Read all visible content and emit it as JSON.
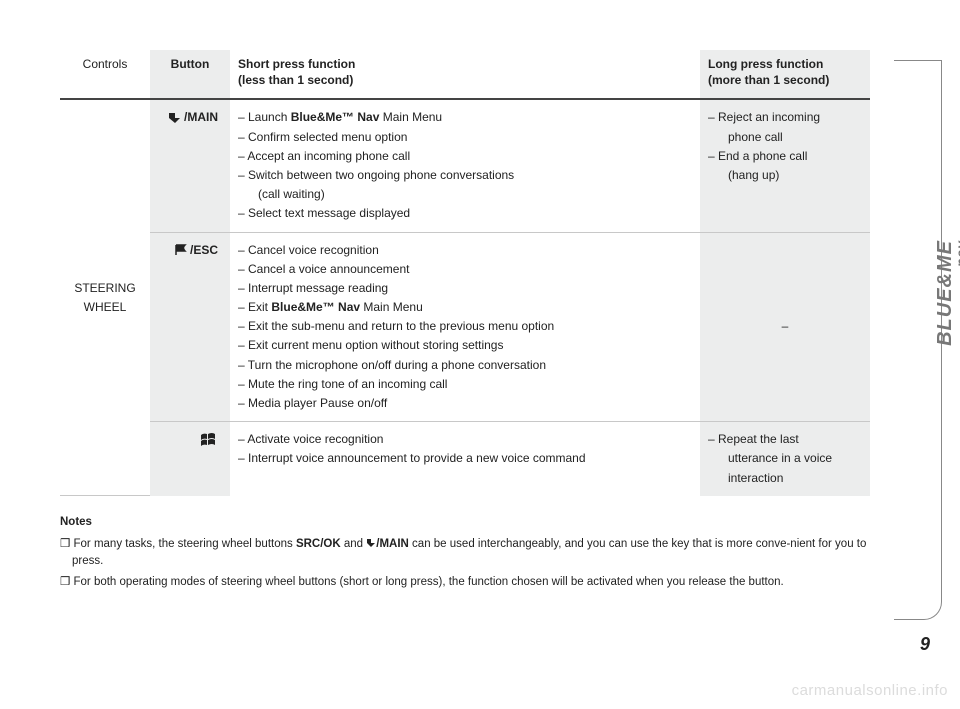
{
  "colors": {
    "shaded_bg": "#eceded",
    "header_rule": "#444444",
    "row_rule": "#c8c8c8",
    "text": "#222222",
    "side_border": "#888888",
    "side_text": "#777777",
    "watermark": "#dcdcdc"
  },
  "table": {
    "headers": {
      "controls": "Controls",
      "button": "Button",
      "short": "Short press function",
      "short_sub": "(less than 1 second)",
      "long": "Long press function",
      "long_sub": "(more than 1 second)"
    },
    "controls_label_line1": "STEERING",
    "controls_label_line2": "WHEEL",
    "rows": [
      {
        "button_icon": "phone-arrow",
        "button_label": "/MAIN",
        "short": [
          "– Launch <b>Blue&Me™ Nav</b> Main Menu",
          "– Confirm selected menu option",
          "– Accept an incoming phone call",
          "– Switch between two ongoing phone conversations",
          "   (call waiting)",
          "– Select text message displayed"
        ],
        "long": [
          "– Reject an incoming",
          "   phone call",
          "– End a phone call",
          "   (hang up)"
        ]
      },
      {
        "button_icon": "flag",
        "button_label": "/ESC",
        "short": [
          "– Cancel voice recognition",
          "– Cancel a voice announcement",
          "– Interrupt message reading",
          "– Exit <b>Blue&Me™ Nav</b> Main Menu",
          "– Exit the sub-menu and return to the previous menu option",
          "– Exit current menu option without storing settings",
          "– Turn the microphone on/off during a phone conversation",
          "– Mute the ring tone of an incoming call",
          "– Media player Pause on/off"
        ],
        "long": [
          "–"
        ],
        "long_centered": true
      },
      {
        "button_icon": "windows",
        "button_label": "",
        "short": [
          "– Activate voice recognition",
          "– Interrupt voice announcement to provide a new voice command"
        ],
        "long": [
          "– Repeat the last",
          "   utterance in a voice",
          "   interaction"
        ]
      }
    ]
  },
  "notes": {
    "title": "Notes",
    "items": [
      "❒ For many tasks, the steering wheel buttons <b>SRC/OK</b> and <b><svg width='10' height='10' viewBox='0 0 10 10' style='vertical-align:-1px'><path d='M1 1 L5 1 L5 5 L9 5 L5 9 L1 5 Z' fill=\"#222\"/></svg>/MAIN</b> can be used interchangeably, and you can use the key that is more conve-nient for you to press.",
      "❒ For both operating modes of steering wheel buttons (short or long press), the function chosen will be activated when you release the button."
    ]
  },
  "side_logo": {
    "main": "BLUE&ME",
    "sub": "nav"
  },
  "page_number": "9",
  "watermark": "carmanualsonline.info"
}
